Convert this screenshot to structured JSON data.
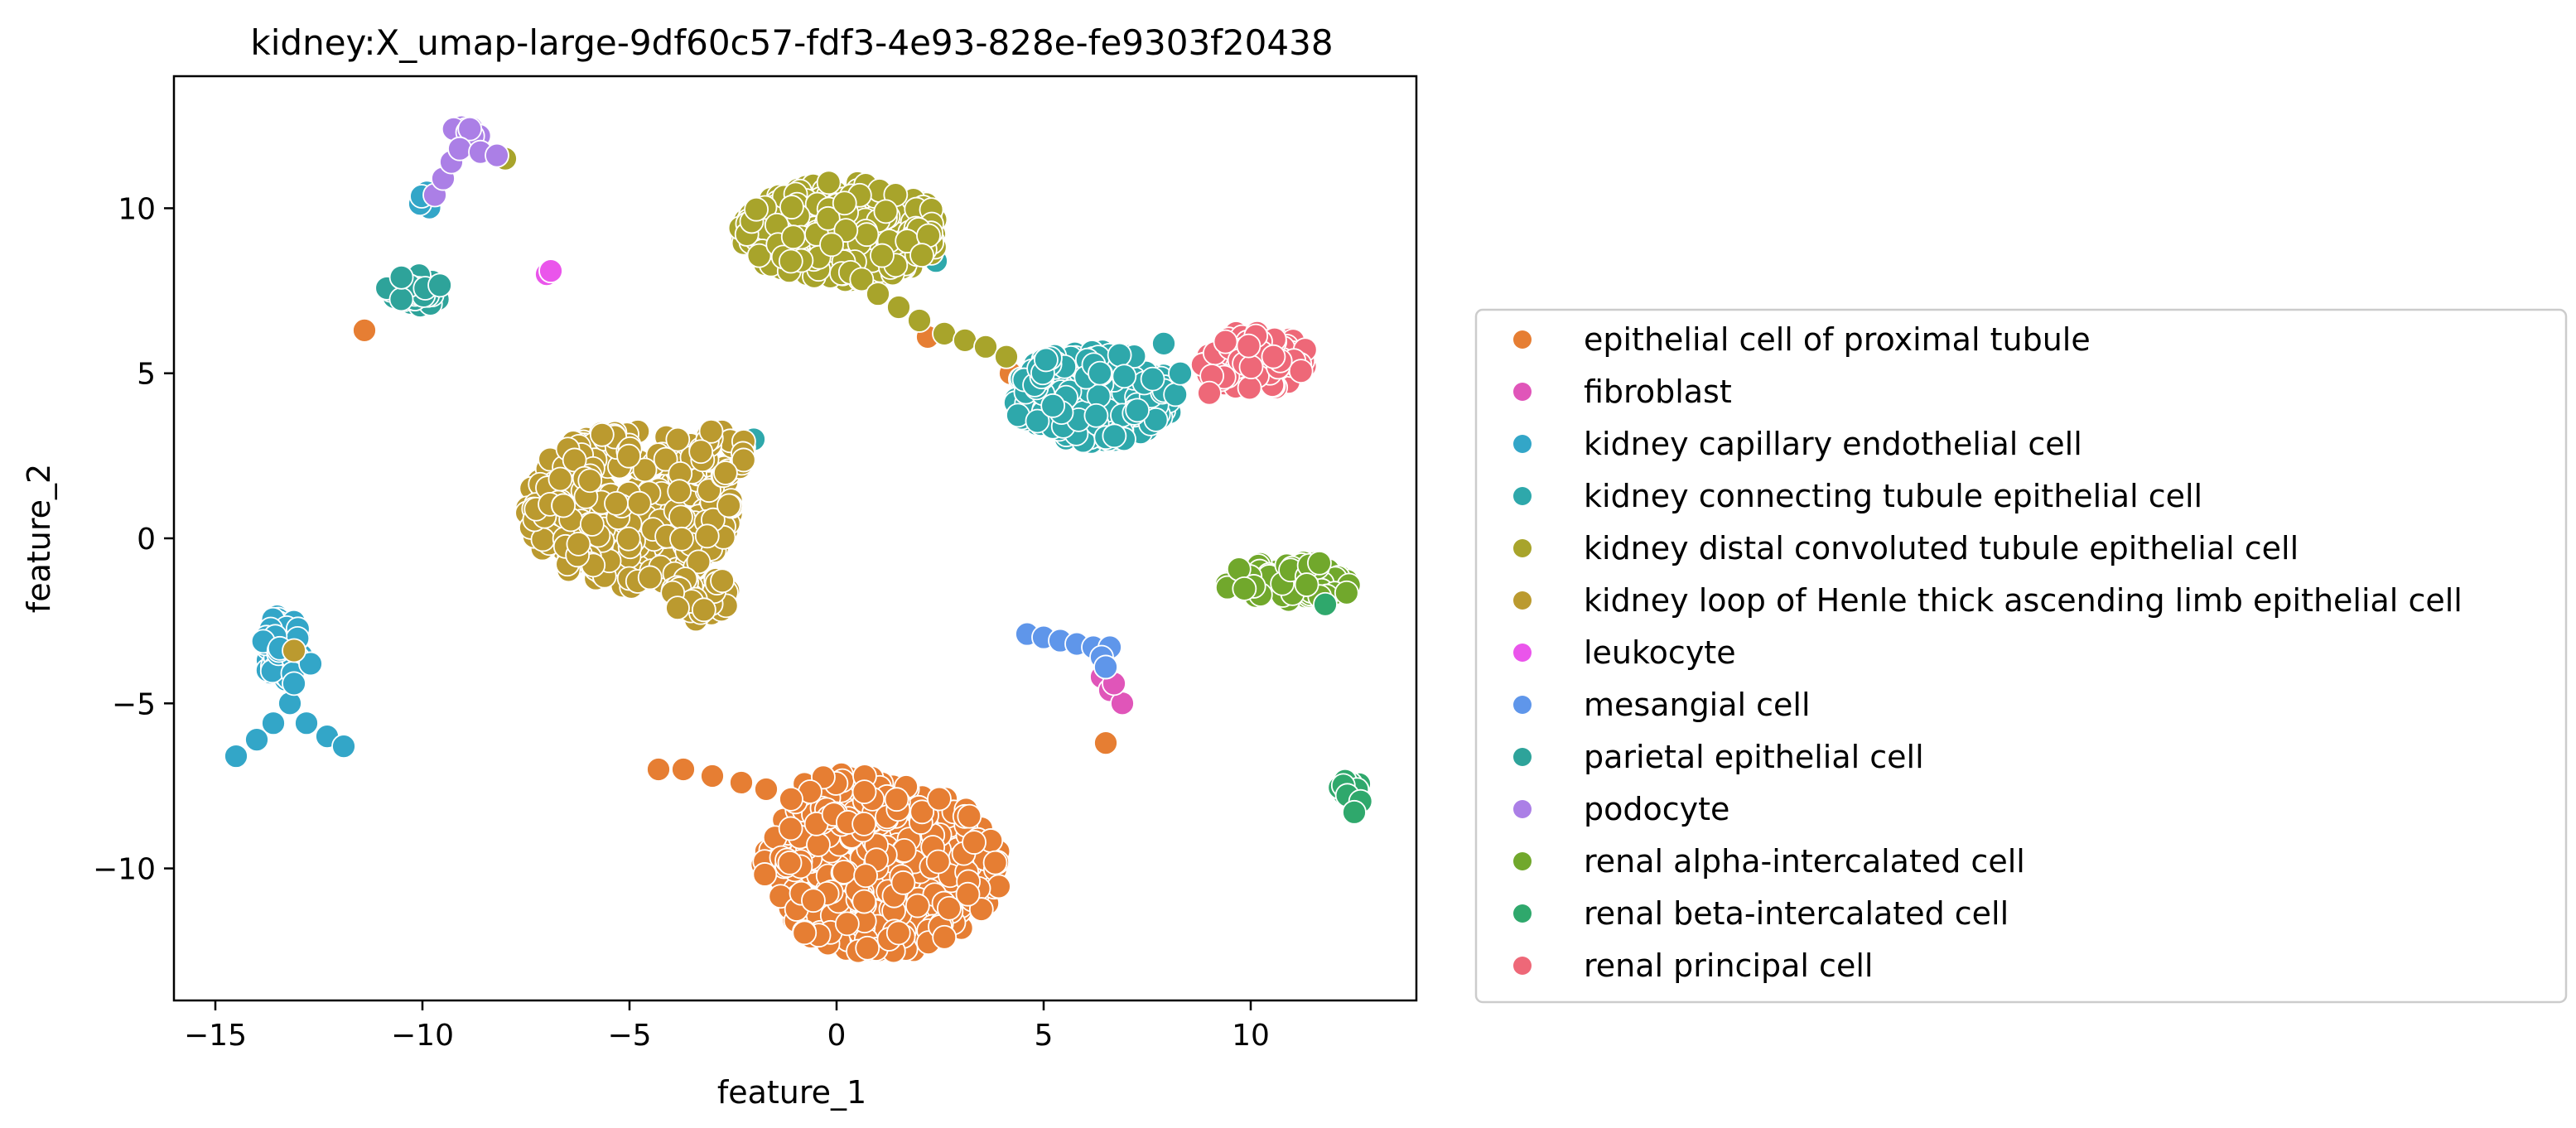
{
  "chart_data": {
    "type": "scatter",
    "title": "kidney:X_umap-large-9df60c57-fdf3-4e93-828e-fe9303f20438",
    "xlabel": "feature_1",
    "ylabel": "feature_2",
    "xlim": [
      -16,
      14
    ],
    "ylim": [
      -14,
      14
    ],
    "xticks": [
      -15,
      -10,
      -5,
      0,
      5,
      10
    ],
    "yticks": [
      -10,
      -5,
      0,
      5,
      10
    ],
    "grid": false,
    "legend_position": "right",
    "series": [
      {
        "name": "epithelial cell of proximal tubule",
        "color": "#e67e33",
        "points": [
          [
            -4.3,
            -7.0
          ],
          [
            -3.7,
            -7.0
          ],
          [
            -3.0,
            -7.2
          ],
          [
            -2.3,
            -7.4
          ],
          [
            -1.7,
            -7.6
          ],
          [
            -1.1,
            -7.9
          ],
          [
            -11.4,
            6.3
          ],
          [
            2.2,
            6.1
          ],
          [
            4.2,
            5.0
          ],
          [
            6.5,
            -6.2
          ]
        ],
        "blobs": [
          {
            "cx": 1.1,
            "cy": -10.0,
            "rx": 2.9,
            "ry": 2.6,
            "n": 380
          },
          {
            "cx": 0.3,
            "cy": -8.0,
            "rx": 1.4,
            "ry": 0.9,
            "n": 50
          }
        ]
      },
      {
        "name": "fibroblast",
        "color": "#e055b9",
        "points": [
          [
            6.4,
            -4.2
          ],
          [
            6.6,
            -4.6
          ],
          [
            6.9,
            -5.0
          ],
          [
            6.7,
            -4.4
          ],
          [
            6.5,
            -3.9
          ]
        ],
        "blobs": []
      },
      {
        "name": "kidney capillary endothelial cell",
        "color": "#33a6c8",
        "points": [
          [
            -13.2,
            -5.0
          ],
          [
            -13.6,
            -5.6
          ],
          [
            -14.0,
            -6.1
          ],
          [
            -14.5,
            -6.6
          ],
          [
            -12.8,
            -5.6
          ],
          [
            -12.3,
            -6.0
          ],
          [
            -11.9,
            -6.3
          ],
          [
            -13.1,
            -4.4
          ],
          [
            -12.7,
            -3.8
          ]
        ],
        "blobs": [
          {
            "cx": -13.4,
            "cy": -3.3,
            "rx": 0.5,
            "ry": 1.0,
            "n": 60
          },
          {
            "cx": -9.9,
            "cy": 10.2,
            "rx": 0.2,
            "ry": 0.4,
            "n": 4
          }
        ]
      },
      {
        "name": "kidney connecting tubule epithelial cell",
        "color": "#2ea8ab",
        "points": [
          [
            -2.0,
            3.0
          ],
          [
            2.4,
            8.4
          ],
          [
            8.3,
            5.0
          ],
          [
            7.9,
            5.9
          ]
        ],
        "blobs": [
          {
            "cx": 6.2,
            "cy": 4.3,
            "rx": 2.0,
            "ry": 1.4,
            "n": 260
          }
        ]
      },
      {
        "name": "kidney distal convoluted tubule epithelial cell",
        "color": "#a8a42b",
        "points": [
          [
            2.0,
            6.6
          ],
          [
            2.6,
            6.2
          ],
          [
            3.1,
            6.0
          ],
          [
            3.6,
            5.8
          ],
          [
            4.1,
            5.5
          ],
          [
            1.5,
            7.0
          ],
          [
            1.0,
            7.4
          ],
          [
            -8.0,
            11.5
          ]
        ],
        "blobs": [
          {
            "cx": 0.1,
            "cy": 9.3,
            "rx": 2.5,
            "ry": 1.5,
            "n": 330
          }
        ]
      },
      {
        "name": "kidney loop of Henle thick ascending limb epithelial cell",
        "color": "#bb9a2f",
        "points": [
          [
            -13.1,
            -3.4
          ]
        ],
        "blobs": [
          {
            "cx": -5.0,
            "cy": 0.9,
            "rx": 2.5,
            "ry": 2.4,
            "n": 340
          },
          {
            "cx": -3.3,
            "cy": -1.6,
            "rx": 0.8,
            "ry": 0.9,
            "n": 40
          },
          {
            "cx": -2.7,
            "cy": 2.5,
            "rx": 0.6,
            "ry": 0.9,
            "n": 30
          }
        ]
      },
      {
        "name": "leukocyte",
        "color": "#ea55eb",
        "points": [
          [
            -7.0,
            8.0
          ],
          [
            -6.9,
            8.1
          ]
        ],
        "blobs": []
      },
      {
        "name": "mesangial cell",
        "color": "#5f96ea",
        "points": [
          [
            4.6,
            -2.9
          ],
          [
            5.0,
            -3.0
          ],
          [
            5.4,
            -3.1
          ],
          [
            5.8,
            -3.2
          ],
          [
            6.2,
            -3.3
          ],
          [
            6.6,
            -3.3
          ],
          [
            6.4,
            -3.6
          ],
          [
            6.5,
            -3.9
          ]
        ],
        "blobs": []
      },
      {
        "name": "parietal epithelial cell",
        "color": "#2ea39a",
        "points": [],
        "blobs": [
          {
            "cx": -10.2,
            "cy": 7.5,
            "rx": 0.7,
            "ry": 0.5,
            "n": 40
          }
        ]
      },
      {
        "name": "podocyte",
        "color": "#ab7fe6",
        "points": [
          [
            -9.7,
            10.4
          ],
          [
            -9.5,
            10.9
          ],
          [
            -9.3,
            11.4
          ],
          [
            -9.1,
            11.8
          ],
          [
            -8.6,
            11.7
          ],
          [
            -8.2,
            11.6
          ]
        ],
        "blobs": [
          {
            "cx": -9.0,
            "cy": 12.2,
            "rx": 0.4,
            "ry": 0.3,
            "n": 12
          }
        ]
      },
      {
        "name": "renal alpha-intercalated cell",
        "color": "#71a82c",
        "points": [],
        "blobs": [
          {
            "cx": 11.0,
            "cy": -1.3,
            "rx": 1.7,
            "ry": 0.6,
            "n": 80
          }
        ]
      },
      {
        "name": "renal beta-intercalated cell",
        "color": "#2fa86c",
        "points": [
          [
            11.8,
            -2.0
          ],
          [
            12.5,
            -8.3
          ]
        ],
        "blobs": [
          {
            "cx": 12.4,
            "cy": -7.7,
            "rx": 0.3,
            "ry": 0.6,
            "n": 20
          }
        ]
      },
      {
        "name": "renal principal cell",
        "color": "#ee6878",
        "points": [
          [
            9.0,
            4.4
          ]
        ],
        "blobs": [
          {
            "cx": 10.1,
            "cy": 5.4,
            "rx": 1.3,
            "ry": 0.9,
            "n": 110
          }
        ]
      }
    ]
  }
}
